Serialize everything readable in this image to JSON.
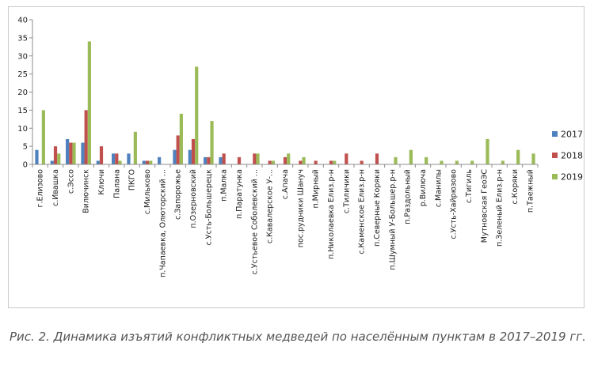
{
  "caption": "Рис. 2. Динамика изъятий конфликтных медведей по населённым пунктам в 2017–2019 гг.",
  "chart_data": {
    "type": "bar",
    "title": "",
    "xlabel": "",
    "ylabel": "",
    "ylim": [
      0,
      40
    ],
    "yticks": [
      0,
      5,
      10,
      15,
      20,
      25,
      30,
      35,
      40
    ],
    "grid": false,
    "legend_position": "right",
    "categories": [
      "г.Елизово",
      "с.Ивашка",
      "с.Эссо",
      "Вилючинск",
      "Ключи",
      "Палана",
      "ПКГО",
      "с.Мильково",
      "п.Чапаевка, Олюторский ...",
      "с.Запорожье",
      "п.Озерновский",
      "с.Усть-Большерецк",
      "п.Малка",
      "п.Паратунка",
      "с.Устьевое Соболевский ...",
      "с.Кавалерское У-...",
      "с.Апача",
      "пос.рудники Шануч",
      "п.Мирный",
      "п.Николаевка Елиз.р-н",
      "с.Тиличики",
      "с.Каменское Елиз.р-н",
      "п.Северные Коряки",
      "п.Шумный У-Большер.р-н",
      "п.Раздольный",
      "р.Вилюча",
      "с.Манилы",
      "с.Усть-Хайрюзово",
      "с.Тигиль",
      "Мутновская ГеоЭС",
      "п.Зеленый Елиз.р-н",
      "с.Коряки",
      "п.Таежный"
    ],
    "series": [
      {
        "name": "2017",
        "color": "#4f81bd",
        "values": [
          4,
          1,
          7,
          6,
          1,
          3,
          3,
          1,
          2,
          4,
          4,
          2,
          2,
          0,
          0,
          0,
          0,
          0,
          0,
          0,
          0,
          0,
          0,
          0,
          0,
          0,
          0,
          0,
          0,
          0,
          0,
          0,
          0
        ]
      },
      {
        "name": "2018",
        "color": "#c0504d",
        "values": [
          0,
          5,
          6,
          15,
          5,
          3,
          0,
          1,
          0,
          8,
          7,
          2,
          3,
          2,
          3,
          1,
          2,
          1,
          1,
          1,
          3,
          1,
          3,
          0,
          0,
          0,
          0,
          0,
          0,
          0,
          0,
          0,
          0
        ]
      },
      {
        "name": "2019",
        "color": "#9bbb59",
        "values": [
          15,
          3,
          6,
          34,
          0,
          1,
          9,
          1,
          0,
          14,
          27,
          12,
          0,
          0,
          3,
          1,
          3,
          2,
          0,
          1,
          0,
          0,
          0,
          2,
          4,
          2,
          1,
          1,
          1,
          7,
          1,
          4,
          3
        ]
      }
    ]
  }
}
